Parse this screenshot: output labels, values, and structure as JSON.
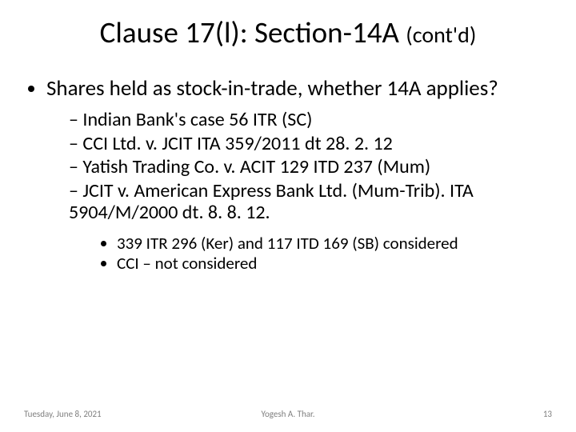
{
  "title": {
    "main": "Clause 17(l): Section-14A ",
    "suffix": "(cont'd)"
  },
  "bullets": {
    "l1": "Shares held as stock-in-trade, whether 14A applies?",
    "l2": [
      "Indian Bank's case 56 ITR (SC)",
      "CCI Ltd. v. JCIT ITA 359/2011 dt 28. 2. 12",
      "Yatish Trading Co. v. ACIT 129 ITD 237 (Mum)",
      "JCIT v. American Express Bank Ltd. (Mum-Trib). ITA 5904/M/2000 dt. 8. 8. 12."
    ],
    "l3": [
      "339 ITR 296 (Ker) and 117 ITD 169 (SB) considered",
      "CCI – not considered"
    ]
  },
  "footer": {
    "date": "Tuesday, June 8, 2021",
    "author": "Yogesh A. Thar.",
    "page": "13"
  },
  "colors": {
    "background": "#ffffff",
    "text": "#000000",
    "footer": "#7f7f7f"
  }
}
